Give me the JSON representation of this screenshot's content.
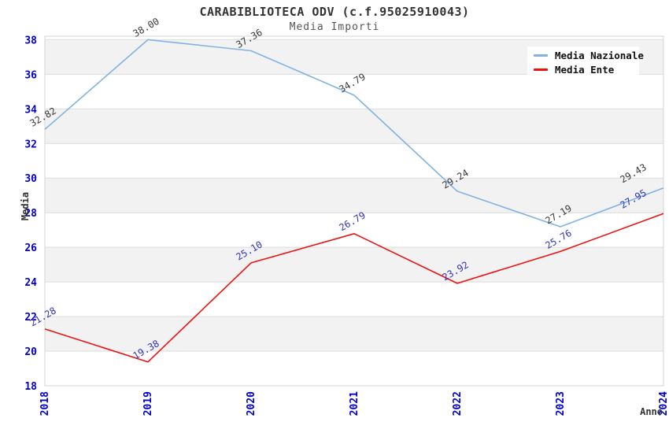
{
  "chart_data": {
    "type": "line",
    "title": "CARABIBLIOTECA ODV (c.f.95025910043)",
    "subtitle": "Media Importi",
    "xlabel": "Anno",
    "ylabel": "Media",
    "categories": [
      "2018",
      "2019",
      "2020",
      "2021",
      "2022",
      "2023",
      "2024"
    ],
    "series": [
      {
        "name": "Media Nazionale",
        "color": "#82b2e4",
        "label_color": "#3a3a3a",
        "values": [
          32.82,
          38.0,
          37.36,
          34.79,
          29.24,
          27.19,
          29.43
        ]
      },
      {
        "name": "Media Ente",
        "color": "#ee1111",
        "label_color": "#3333bb",
        "values": [
          21.28,
          19.38,
          25.1,
          26.79,
          23.92,
          25.76,
          27.95
        ]
      }
    ],
    "ylim": [
      18,
      38.2
    ],
    "ytick_step": 2,
    "yticks": [
      18,
      20,
      22,
      24,
      26,
      28,
      30,
      32,
      34,
      36,
      38
    ],
    "tick_color": "#0000cc",
    "band_colors": [
      "#ffffff",
      "#f2f2f2"
    ],
    "grid_line_color": "#dcdcdc",
    "plot_border_color": "#d4d4d4",
    "grid": "horizontal-bands",
    "legend_position": "top-right",
    "point_label_decimals": 2
  }
}
